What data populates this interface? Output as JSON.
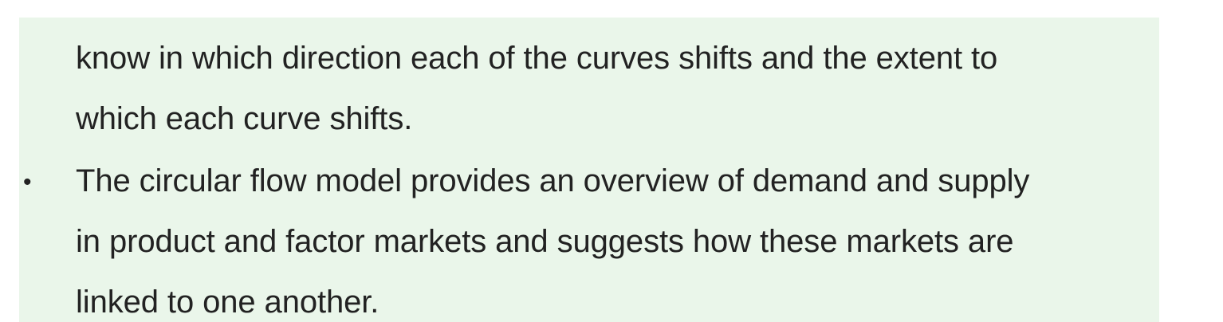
{
  "document": {
    "continued_lines": [
      "know in which direction each of the curves shifts and the extent to",
      "which each curve shifts."
    ],
    "bullet_symbol": "•",
    "bullet_lines": [
      "The circular flow model provides an overview of demand and supply",
      "in product and factor markets and suggests how these markets are",
      "linked to one another."
    ]
  },
  "colors": {
    "panel_background": "#eaf6ea",
    "text": "#222222"
  }
}
